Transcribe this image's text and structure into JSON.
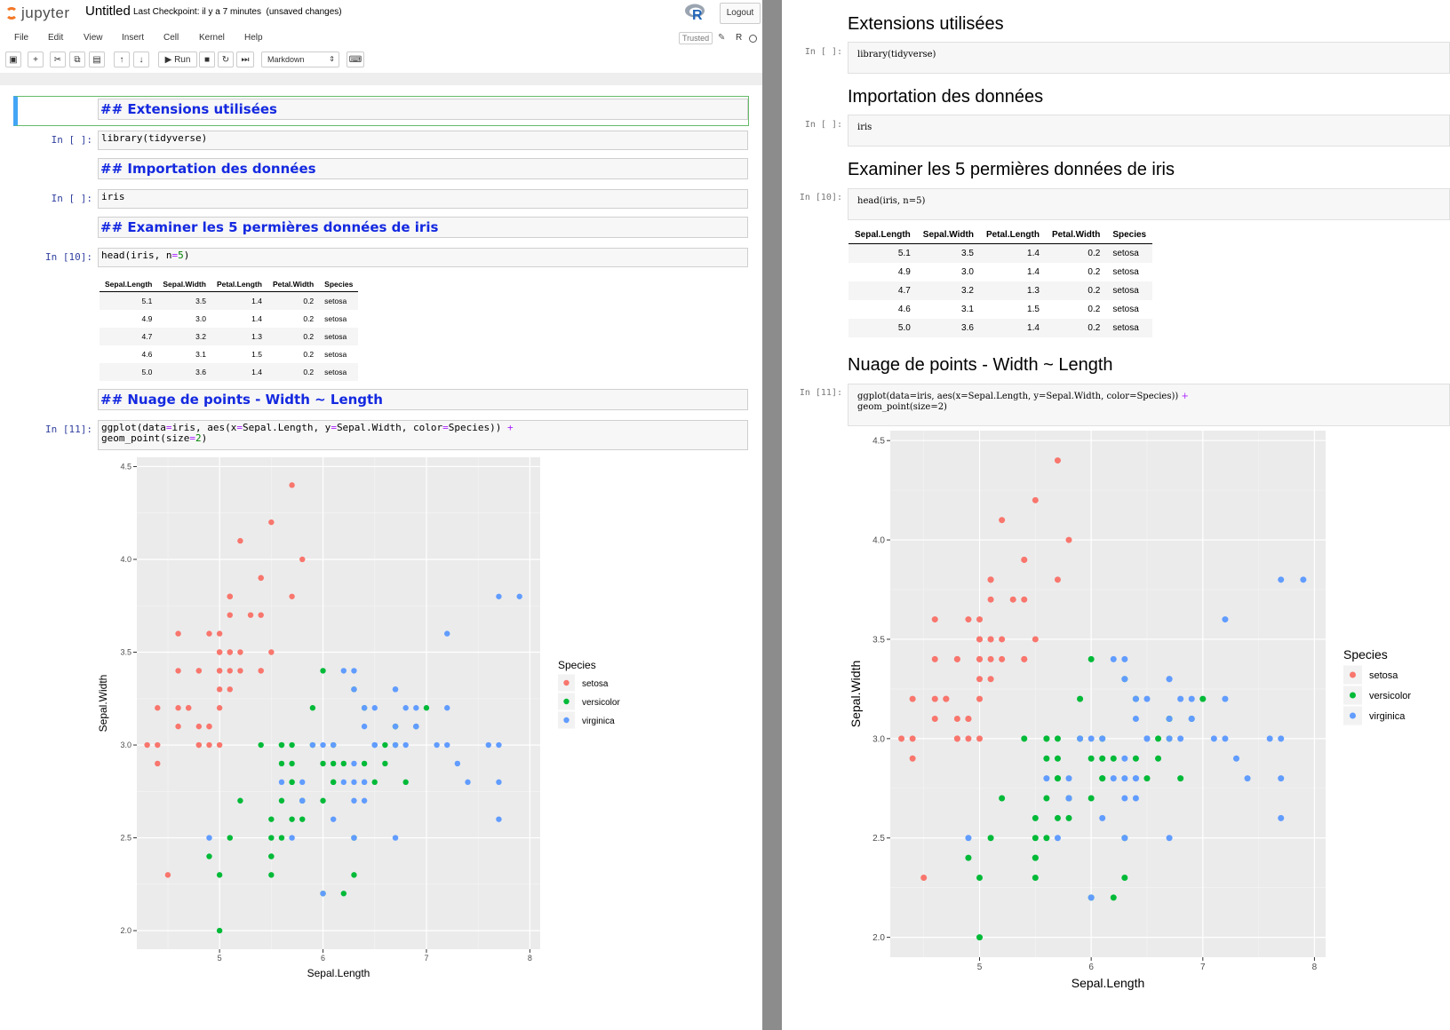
{
  "header": {
    "logo_text": "jupyter",
    "notebook_title": "Untitled",
    "checkpoint": "Last Checkpoint: il y a 7 minutes",
    "unsaved": "(unsaved changes)",
    "logout": "Logout",
    "trusted": "Trusted",
    "kernel_name": "R"
  },
  "menu": [
    "File",
    "Edit",
    "View",
    "Insert",
    "Cell",
    "Kernel",
    "Help"
  ],
  "toolbar": {
    "run_label": "Run",
    "cell_type": "Markdown"
  },
  "left_notebook": {
    "markdown_cells": [
      "## Extensions utilisées",
      "## Importation des données",
      "## Examiner les 5 permières données de iris",
      "## Nuage de points - Width ~ Length"
    ],
    "prompts": [
      "In [ ]:",
      "In [ ]:",
      "In [10]:",
      "In [11]:"
    ]
  },
  "right_notebook": {
    "headings": [
      "Extensions utilisées",
      "Importation des données",
      "Examiner les 5 permières données de iris",
      "Nuage de points - Width ~ Length"
    ],
    "prompts": [
      "In [ ]:",
      "In [ ]:",
      "In [10]:",
      "In [11]:"
    ]
  },
  "table": {
    "columns": [
      "Sepal.Length",
      "Sepal.Width",
      "Petal.Length",
      "Petal.Width",
      "Species"
    ],
    "rows": [
      [
        "5.1",
        "3.5",
        "1.4",
        "0.2",
        "setosa"
      ],
      [
        "4.9",
        "3.0",
        "1.4",
        "0.2",
        "setosa"
      ],
      [
        "4.7",
        "3.2",
        "1.3",
        "0.2",
        "setosa"
      ],
      [
        "4.6",
        "3.1",
        "1.5",
        "0.2",
        "setosa"
      ],
      [
        "5.0",
        "3.6",
        "1.4",
        "0.2",
        "setosa"
      ]
    ]
  },
  "chart_data": {
    "type": "scatter",
    "title": "",
    "xlabel": "Sepal.Length",
    "ylabel": "Sepal.Width",
    "xlim": [
      4.2,
      8.1
    ],
    "ylim": [
      1.9,
      4.55
    ],
    "xticks": [
      5,
      6,
      7,
      8
    ],
    "yticks": [
      2.0,
      2.5,
      3.0,
      3.5,
      4.0,
      4.5
    ],
    "ytick_labels": [
      "2.0",
      "2.5",
      "3.0",
      "3.5",
      "4.0",
      "4.5"
    ],
    "grid": true,
    "legend_title": "Species",
    "legend_placement": "right",
    "series": [
      {
        "name": "setosa",
        "color": "#f8766d",
        "points": [
          [
            5.1,
            3.5
          ],
          [
            4.9,
            3.0
          ],
          [
            4.7,
            3.2
          ],
          [
            4.6,
            3.1
          ],
          [
            5.0,
            3.6
          ],
          [
            5.4,
            3.9
          ],
          [
            4.6,
            3.4
          ],
          [
            5.0,
            3.4
          ],
          [
            4.4,
            2.9
          ],
          [
            4.9,
            3.1
          ],
          [
            5.4,
            3.7
          ],
          [
            4.8,
            3.4
          ],
          [
            4.8,
            3.0
          ],
          [
            4.3,
            3.0
          ],
          [
            5.8,
            4.0
          ],
          [
            5.7,
            4.4
          ],
          [
            5.4,
            3.9
          ],
          [
            5.1,
            3.5
          ],
          [
            5.7,
            3.8
          ],
          [
            5.1,
            3.8
          ],
          [
            5.4,
            3.4
          ],
          [
            5.1,
            3.7
          ],
          [
            4.6,
            3.6
          ],
          [
            5.1,
            3.3
          ],
          [
            4.8,
            3.4
          ],
          [
            5.0,
            3.0
          ],
          [
            5.0,
            3.4
          ],
          [
            5.2,
            3.5
          ],
          [
            5.2,
            3.4
          ],
          [
            4.7,
            3.2
          ],
          [
            4.8,
            3.1
          ],
          [
            5.4,
            3.4
          ],
          [
            5.2,
            4.1
          ],
          [
            5.5,
            4.2
          ],
          [
            4.9,
            3.1
          ],
          [
            5.0,
            3.2
          ],
          [
            5.5,
            3.5
          ],
          [
            4.9,
            3.6
          ],
          [
            4.4,
            3.0
          ],
          [
            5.1,
            3.4
          ],
          [
            5.0,
            3.5
          ],
          [
            4.5,
            2.3
          ],
          [
            4.4,
            3.2
          ],
          [
            5.0,
            3.5
          ],
          [
            5.1,
            3.8
          ],
          [
            4.8,
            3.0
          ],
          [
            5.1,
            3.8
          ],
          [
            4.6,
            3.2
          ],
          [
            5.3,
            3.7
          ],
          [
            5.0,
            3.3
          ]
        ]
      },
      {
        "name": "versicolor",
        "color": "#00ba38",
        "points": [
          [
            7.0,
            3.2
          ],
          [
            6.4,
            3.2
          ],
          [
            6.9,
            3.1
          ],
          [
            5.5,
            2.3
          ],
          [
            6.5,
            2.8
          ],
          [
            5.7,
            2.8
          ],
          [
            6.3,
            3.3
          ],
          [
            4.9,
            2.4
          ],
          [
            6.6,
            2.9
          ],
          [
            5.2,
            2.7
          ],
          [
            5.0,
            2.0
          ],
          [
            5.9,
            3.0
          ],
          [
            6.0,
            2.2
          ],
          [
            6.1,
            2.9
          ],
          [
            5.6,
            2.9
          ],
          [
            6.7,
            3.1
          ],
          [
            5.6,
            3.0
          ],
          [
            5.8,
            2.7
          ],
          [
            6.2,
            2.2
          ],
          [
            5.6,
            2.5
          ],
          [
            5.9,
            3.2
          ],
          [
            6.1,
            2.8
          ],
          [
            6.3,
            2.5
          ],
          [
            6.1,
            2.8
          ],
          [
            6.4,
            2.9
          ],
          [
            6.6,
            3.0
          ],
          [
            6.8,
            2.8
          ],
          [
            6.7,
            3.0
          ],
          [
            6.0,
            2.9
          ],
          [
            5.7,
            2.6
          ],
          [
            5.5,
            2.4
          ],
          [
            5.5,
            2.4
          ],
          [
            5.8,
            2.7
          ],
          [
            6.0,
            2.7
          ],
          [
            5.4,
            3.0
          ],
          [
            6.0,
            3.4
          ],
          [
            6.7,
            3.1
          ],
          [
            6.3,
            2.3
          ],
          [
            5.6,
            3.0
          ],
          [
            5.5,
            2.5
          ],
          [
            5.5,
            2.6
          ],
          [
            6.1,
            3.0
          ],
          [
            5.8,
            2.6
          ],
          [
            5.0,
            2.3
          ],
          [
            5.6,
            2.7
          ],
          [
            5.7,
            3.0
          ],
          [
            5.7,
            2.9
          ],
          [
            6.2,
            2.9
          ],
          [
            5.1,
            2.5
          ],
          [
            5.7,
            2.8
          ]
        ]
      },
      {
        "name": "virginica",
        "color": "#619cff",
        "points": [
          [
            6.3,
            3.3
          ],
          [
            5.8,
            2.7
          ],
          [
            7.1,
            3.0
          ],
          [
            6.3,
            2.9
          ],
          [
            6.5,
            3.0
          ],
          [
            7.6,
            3.0
          ],
          [
            4.9,
            2.5
          ],
          [
            7.3,
            2.9
          ],
          [
            6.7,
            2.5
          ],
          [
            7.2,
            3.6
          ],
          [
            6.5,
            3.2
          ],
          [
            6.4,
            2.7
          ],
          [
            6.8,
            3.0
          ],
          [
            5.7,
            2.5
          ],
          [
            5.8,
            2.8
          ],
          [
            6.4,
            3.2
          ],
          [
            6.5,
            3.0
          ],
          [
            7.7,
            3.8
          ],
          [
            7.7,
            2.6
          ],
          [
            6.0,
            2.2
          ],
          [
            6.9,
            3.2
          ],
          [
            5.6,
            2.8
          ],
          [
            7.7,
            2.8
          ],
          [
            6.3,
            2.7
          ],
          [
            6.7,
            3.3
          ],
          [
            7.2,
            3.2
          ],
          [
            6.2,
            2.8
          ],
          [
            6.1,
            3.0
          ],
          [
            6.4,
            2.8
          ],
          [
            7.2,
            3.0
          ],
          [
            7.4,
            2.8
          ],
          [
            7.9,
            3.8
          ],
          [
            6.4,
            2.8
          ],
          [
            6.3,
            2.8
          ],
          [
            6.1,
            2.6
          ],
          [
            7.7,
            3.0
          ],
          [
            6.3,
            3.4
          ],
          [
            6.4,
            3.1
          ],
          [
            6.0,
            3.0
          ],
          [
            6.9,
            3.1
          ],
          [
            6.7,
            3.1
          ],
          [
            6.9,
            3.1
          ],
          [
            5.8,
            2.7
          ],
          [
            6.8,
            3.2
          ],
          [
            6.7,
            3.3
          ],
          [
            6.7,
            3.0
          ],
          [
            6.3,
            2.5
          ],
          [
            6.5,
            3.0
          ],
          [
            6.2,
            3.4
          ],
          [
            5.9,
            3.0
          ]
        ]
      }
    ]
  }
}
